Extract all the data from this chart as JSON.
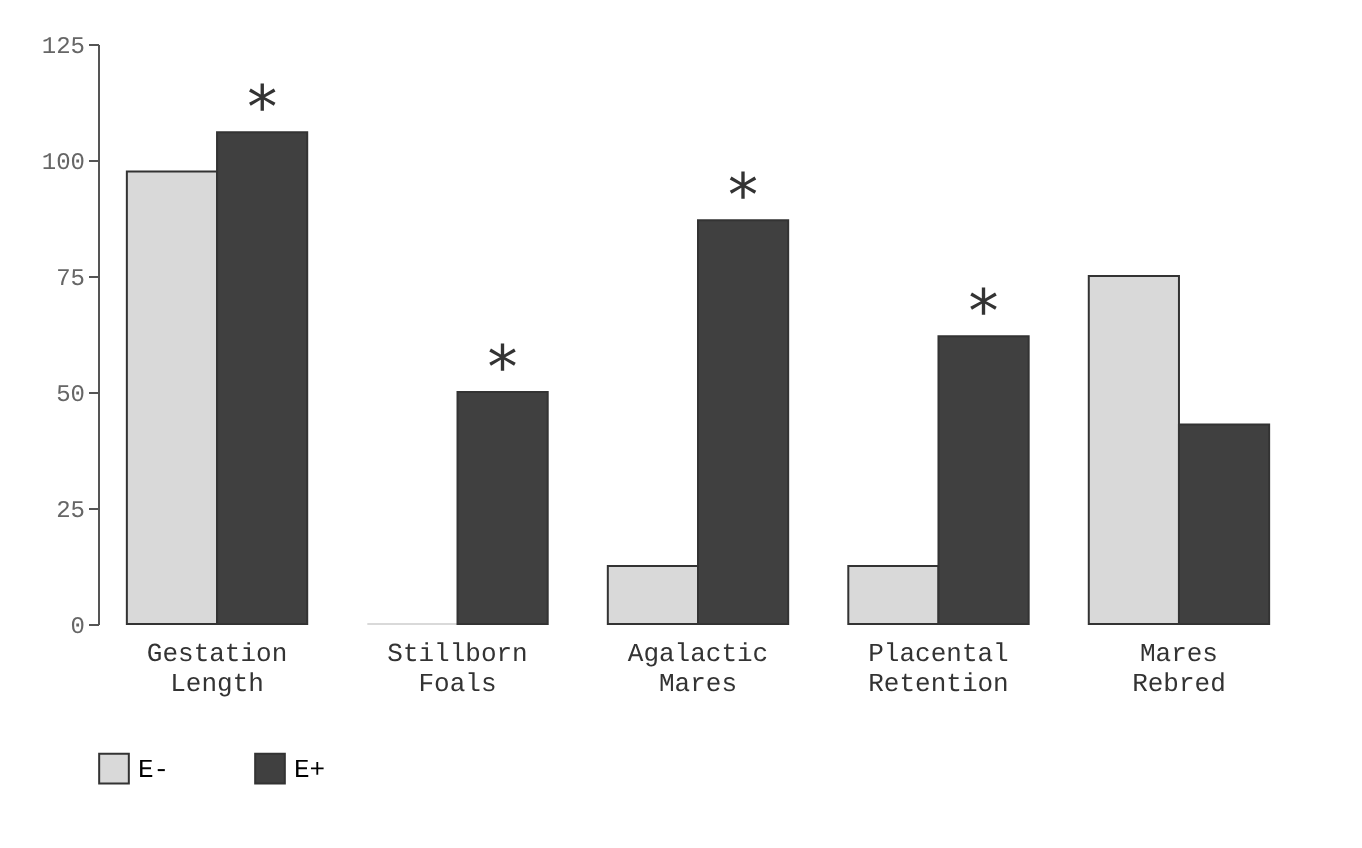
{
  "chart_data": {
    "type": "bar",
    "categories": [
      "Gestation Length",
      "Stillborn Foals",
      "Agalactic Mares",
      "Placental Retention",
      "Mares Rebred"
    ],
    "series": [
      {
        "name": "E-",
        "color": "#d9d9d9",
        "values": [
          97.5,
          0,
          12.5,
          12.5,
          75
        ]
      },
      {
        "name": "E+",
        "color": "#404040",
        "values": [
          106,
          50,
          87,
          62,
          43
        ]
      }
    ],
    "ylim": [
      0,
      125
    ],
    "yticks": [
      0,
      25,
      50,
      75,
      100,
      125
    ],
    "grid": false,
    "legend": "bottom",
    "annotations": [
      {
        "text": "*",
        "x": "Gestation Length",
        "y": 106
      },
      {
        "text": "*",
        "x": "Stillborn Foals",
        "y": 50
      },
      {
        "text": "*",
        "x": "Agalactic Mares",
        "y": 87
      },
      {
        "text": "*",
        "x": "Placental Retention",
        "y": 62
      }
    ]
  }
}
